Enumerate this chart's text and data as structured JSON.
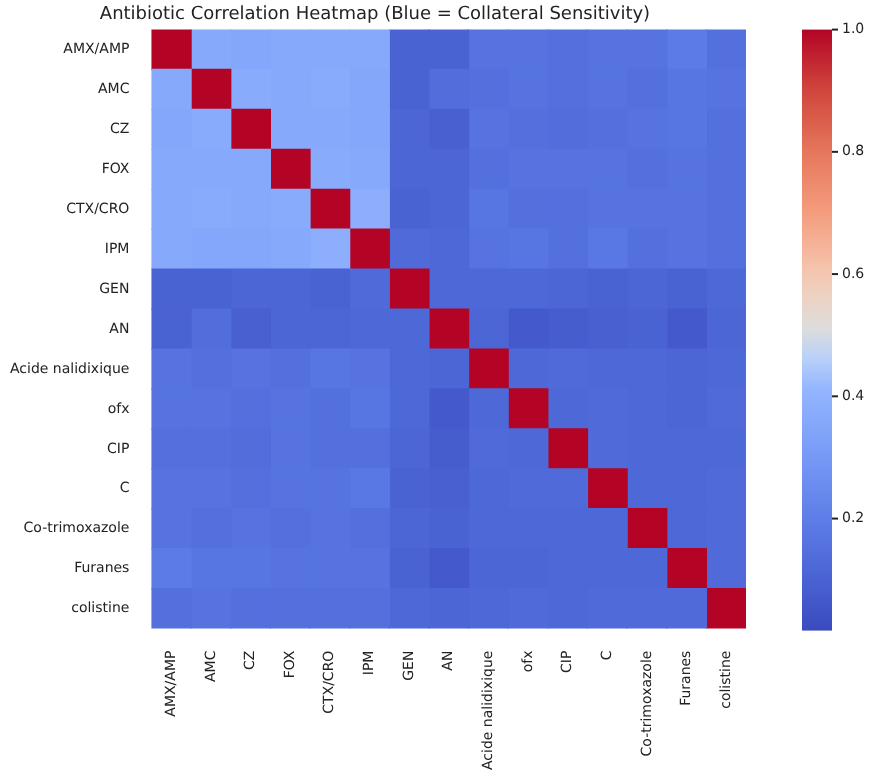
{
  "chart_data": {
    "type": "heatmap",
    "title": "Antibiotic Correlation Heatmap (Blue = Collateral Sensitivity)",
    "categories": [
      "AMX/AMP",
      "AMC",
      "CZ",
      "FOX",
      "CTX/CRO",
      "IPM",
      "GEN",
      "AN",
      "Acide nalidixique",
      "ofx",
      "CIP",
      "C",
      "Co-trimoxazole",
      "Furanes",
      "colistine"
    ],
    "y_categories": [
      "AMX/AMP",
      "AMC",
      "CZ",
      "FOX",
      "CTX/CRO",
      "IPM",
      "GEN",
      "AN",
      "Acide nalidixique",
      "ofx",
      "CIP",
      "C",
      "Co-trimoxazole",
      "Furanes",
      "colistine"
    ],
    "cells": [
      [
        1.0,
        0.36,
        0.35,
        0.36,
        0.36,
        0.36,
        0.1,
        0.1,
        0.16,
        0.16,
        0.15,
        0.16,
        0.16,
        0.19,
        0.15
      ],
      [
        0.36,
        1.0,
        0.37,
        0.36,
        0.37,
        0.35,
        0.1,
        0.14,
        0.15,
        0.16,
        0.15,
        0.16,
        0.15,
        0.17,
        0.16
      ],
      [
        0.35,
        0.37,
        1.0,
        0.36,
        0.36,
        0.35,
        0.11,
        0.09,
        0.16,
        0.15,
        0.14,
        0.15,
        0.16,
        0.17,
        0.15
      ],
      [
        0.36,
        0.36,
        0.36,
        1.0,
        0.37,
        0.36,
        0.11,
        0.11,
        0.15,
        0.16,
        0.16,
        0.16,
        0.15,
        0.16,
        0.15
      ],
      [
        0.36,
        0.37,
        0.36,
        0.37,
        1.0,
        0.38,
        0.1,
        0.11,
        0.17,
        0.15,
        0.15,
        0.16,
        0.16,
        0.16,
        0.15
      ],
      [
        0.36,
        0.35,
        0.35,
        0.36,
        0.38,
        1.0,
        0.13,
        0.12,
        0.16,
        0.17,
        0.15,
        0.18,
        0.15,
        0.16,
        0.15
      ],
      [
        0.1,
        0.1,
        0.11,
        0.11,
        0.1,
        0.13,
        1.0,
        0.12,
        0.12,
        0.12,
        0.11,
        0.1,
        0.11,
        0.1,
        0.12
      ],
      [
        0.1,
        0.14,
        0.09,
        0.11,
        0.11,
        0.12,
        0.12,
        1.0,
        0.11,
        0.07,
        0.08,
        0.09,
        0.1,
        0.07,
        0.11
      ],
      [
        0.16,
        0.15,
        0.16,
        0.15,
        0.17,
        0.16,
        0.12,
        0.11,
        1.0,
        0.12,
        0.13,
        0.12,
        0.12,
        0.11,
        0.12
      ],
      [
        0.16,
        0.16,
        0.15,
        0.16,
        0.15,
        0.17,
        0.12,
        0.07,
        0.12,
        1.0,
        0.12,
        0.13,
        0.12,
        0.11,
        0.13
      ],
      [
        0.15,
        0.15,
        0.14,
        0.16,
        0.15,
        0.15,
        0.11,
        0.08,
        0.13,
        0.12,
        1.0,
        0.13,
        0.12,
        0.12,
        0.12
      ],
      [
        0.16,
        0.16,
        0.15,
        0.16,
        0.16,
        0.18,
        0.1,
        0.09,
        0.12,
        0.13,
        0.13,
        1.0,
        0.12,
        0.12,
        0.13
      ],
      [
        0.16,
        0.15,
        0.16,
        0.15,
        0.16,
        0.15,
        0.11,
        0.1,
        0.12,
        0.12,
        0.12,
        0.12,
        1.0,
        0.12,
        0.13
      ],
      [
        0.19,
        0.17,
        0.17,
        0.16,
        0.16,
        0.16,
        0.1,
        0.07,
        0.11,
        0.11,
        0.12,
        0.12,
        0.12,
        1.0,
        0.13
      ],
      [
        0.15,
        0.16,
        0.15,
        0.15,
        0.15,
        0.15,
        0.12,
        0.11,
        0.12,
        0.13,
        0.12,
        0.13,
        0.13,
        0.13,
        1.0
      ]
    ],
    "clim": [
      0.02,
      1.0
    ],
    "cticks": [
      0.2,
      0.4,
      0.6,
      0.8,
      {
        "value": 1.0,
        "label": "1.0"
      }
    ]
  }
}
